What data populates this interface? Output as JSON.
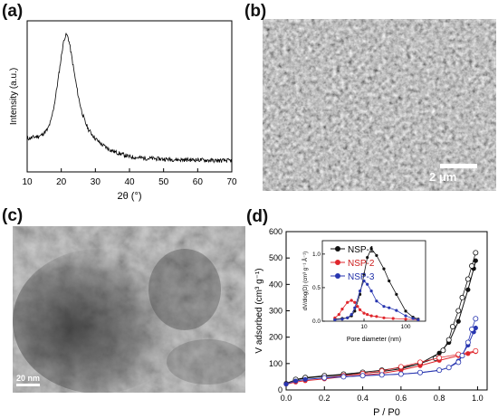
{
  "panels": {
    "a": "(a)",
    "b": "(b)",
    "c": "(c)",
    "d": "(d)"
  },
  "scale_bars": {
    "b": "2 μm",
    "c": "20 nm"
  },
  "colors": {
    "nsp1": "#111111",
    "nsp2": "#e0262c",
    "nsp3": "#2836b0",
    "nsp1_legend": "#000000",
    "nsp2_legend": "#cc1a1a",
    "nsp3_legend": "#1f2fa8"
  },
  "chart_data": [
    {
      "panel": "a",
      "type": "line",
      "xlabel": "2θ (°)",
      "ylabel": "Intensity (a.u.)",
      "xlim": [
        10,
        70
      ],
      "xticks": [
        "10",
        "20",
        "30",
        "40",
        "50",
        "60",
        "70"
      ],
      "x": [
        10,
        12,
        14,
        16,
        17,
        18,
        19,
        20,
        20.5,
        21,
        21.5,
        22,
        22.5,
        23,
        24,
        25,
        26,
        27,
        28,
        30,
        32,
        34,
        36,
        38,
        40,
        45,
        50,
        55,
        60,
        65,
        70
      ],
      "y": [
        0.22,
        0.23,
        0.24,
        0.28,
        0.34,
        0.45,
        0.6,
        0.76,
        0.84,
        0.89,
        0.91,
        0.89,
        0.84,
        0.77,
        0.63,
        0.5,
        0.4,
        0.33,
        0.28,
        0.22,
        0.18,
        0.15,
        0.13,
        0.115,
        0.1,
        0.09,
        0.085,
        0.08,
        0.08,
        0.075,
        0.075
      ]
    },
    {
      "panel": "d",
      "type": "scatter",
      "xlabel": "P / P0",
      "ylabel": "V adsorbed (cm³ g⁻¹)",
      "xlim": [
        0,
        1.05
      ],
      "ylim": [
        0,
        600
      ],
      "xticks": [
        "0.0",
        "0.2",
        "0.4",
        "0.6",
        "0.8",
        "1.0"
      ],
      "yticks": [
        "0",
        "100",
        "200",
        "300",
        "400",
        "500",
        "600"
      ],
      "series": [
        {
          "name": "NSP-1",
          "adsorption": [
            [
              0.0,
              25
            ],
            [
              0.05,
              38
            ],
            [
              0.1,
              45
            ],
            [
              0.2,
              52
            ],
            [
              0.3,
              58
            ],
            [
              0.4,
              63
            ],
            [
              0.5,
              70
            ],
            [
              0.6,
              80
            ],
            [
              0.7,
              100
            ],
            [
              0.8,
              140
            ],
            [
              0.85,
              180
            ],
            [
              0.9,
              260
            ],
            [
              0.95,
              380
            ],
            [
              0.98,
              460
            ],
            [
              0.99,
              490
            ]
          ],
          "desorption": [
            [
              0.99,
              520
            ],
            [
              0.97,
              470
            ],
            [
              0.95,
              420
            ],
            [
              0.92,
              350
            ],
            [
              0.9,
              300
            ],
            [
              0.87,
              240
            ],
            [
              0.85,
              190
            ],
            [
              0.82,
              150
            ],
            [
              0.78,
              120
            ],
            [
              0.7,
              100
            ],
            [
              0.6,
              85
            ],
            [
              0.5,
              75
            ],
            [
              0.4,
              67
            ],
            [
              0.3,
              60
            ],
            [
              0.2,
              54
            ],
            [
              0.1,
              47
            ],
            [
              0.05,
              40
            ]
          ]
        },
        {
          "name": "NSP-2",
          "adsorption": [
            [
              0.0,
              22
            ],
            [
              0.05,
              30
            ],
            [
              0.1,
              35
            ],
            [
              0.2,
              42
            ],
            [
              0.3,
              50
            ],
            [
              0.4,
              56
            ],
            [
              0.5,
              63
            ],
            [
              0.6,
              75
            ],
            [
              0.7,
              92
            ],
            [
              0.8,
              112
            ],
            [
              0.9,
              130
            ],
            [
              0.95,
              138
            ],
            [
              0.99,
              145
            ]
          ],
          "desorption": [
            [
              0.99,
              148
            ],
            [
              0.9,
              135
            ],
            [
              0.8,
              122
            ],
            [
              0.7,
              105
            ],
            [
              0.6,
              88
            ],
            [
              0.5,
              72
            ],
            [
              0.4,
              62
            ],
            [
              0.3,
              54
            ],
            [
              0.2,
              46
            ]
          ]
        },
        {
          "name": "NSP-3",
          "adsorption": [
            [
              0.0,
              22
            ],
            [
              0.05,
              34
            ],
            [
              0.1,
              40
            ],
            [
              0.2,
              46
            ],
            [
              0.3,
              50
            ],
            [
              0.4,
              54
            ],
            [
              0.5,
              57
            ],
            [
              0.6,
              60
            ],
            [
              0.7,
              65
            ],
            [
              0.8,
              74
            ],
            [
              0.85,
              85
            ],
            [
              0.9,
              110
            ],
            [
              0.95,
              170
            ],
            [
              0.98,
              220
            ],
            [
              0.99,
              235
            ]
          ],
          "desorption": [
            [
              0.99,
              270
            ],
            [
              0.97,
              230
            ],
            [
              0.95,
              180
            ],
            [
              0.92,
              130
            ],
            [
              0.9,
              105
            ],
            [
              0.85,
              85
            ],
            [
              0.8,
              75
            ],
            [
              0.7,
              66
            ],
            [
              0.6,
              60
            ],
            [
              0.5,
              57
            ],
            [
              0.4,
              54
            ],
            [
              0.3,
              50
            ],
            [
              0.2,
              46
            ]
          ]
        }
      ],
      "inset": {
        "type": "line",
        "xlabel": "Pore diameter (nm)",
        "ylabel": "dV/dlog(D) (cm³ g⁻¹ Å⁻¹)",
        "xscale": "log",
        "xlim": [
          1,
          300
        ],
        "ylim": [
          0,
          1.2
        ],
        "xticks": [
          "10",
          "100"
        ],
        "yticks": [
          "0.0",
          "0.5",
          "1.0"
        ],
        "series": [
          {
            "name": "NSP-1",
            "x": [
              2,
              3,
              4,
              5,
              6,
              8,
              10,
              12,
              15,
              20,
              30,
              40,
              60,
              100,
              150,
              200
            ],
            "y": [
              0.03,
              0.04,
              0.05,
              0.08,
              0.15,
              0.4,
              0.7,
              0.95,
              1.08,
              0.98,
              0.78,
              0.6,
              0.4,
              0.15,
              0.06,
              0.03
            ]
          },
          {
            "name": "NSP-2",
            "x": [
              2,
              2.5,
              3,
              4,
              5,
              6,
              7,
              8,
              10,
              12,
              15,
              20,
              30,
              50,
              100,
              200
            ],
            "y": [
              0.05,
              0.1,
              0.18,
              0.28,
              0.31,
              0.28,
              0.22,
              0.17,
              0.12,
              0.1,
              0.08,
              0.07,
              0.05,
              0.04,
              0.03,
              0.02
            ]
          },
          {
            "name": "NSP-3",
            "x": [
              2,
              3,
              4,
              5,
              6,
              8,
              10,
              12,
              15,
              20,
              30,
              40,
              60,
              100,
              150,
              200
            ],
            "y": [
              0.02,
              0.03,
              0.05,
              0.1,
              0.2,
              0.45,
              0.6,
              0.55,
              0.45,
              0.3,
              0.22,
              0.2,
              0.16,
              0.08,
              0.04,
              0.02
            ]
          }
        ]
      }
    }
  ]
}
